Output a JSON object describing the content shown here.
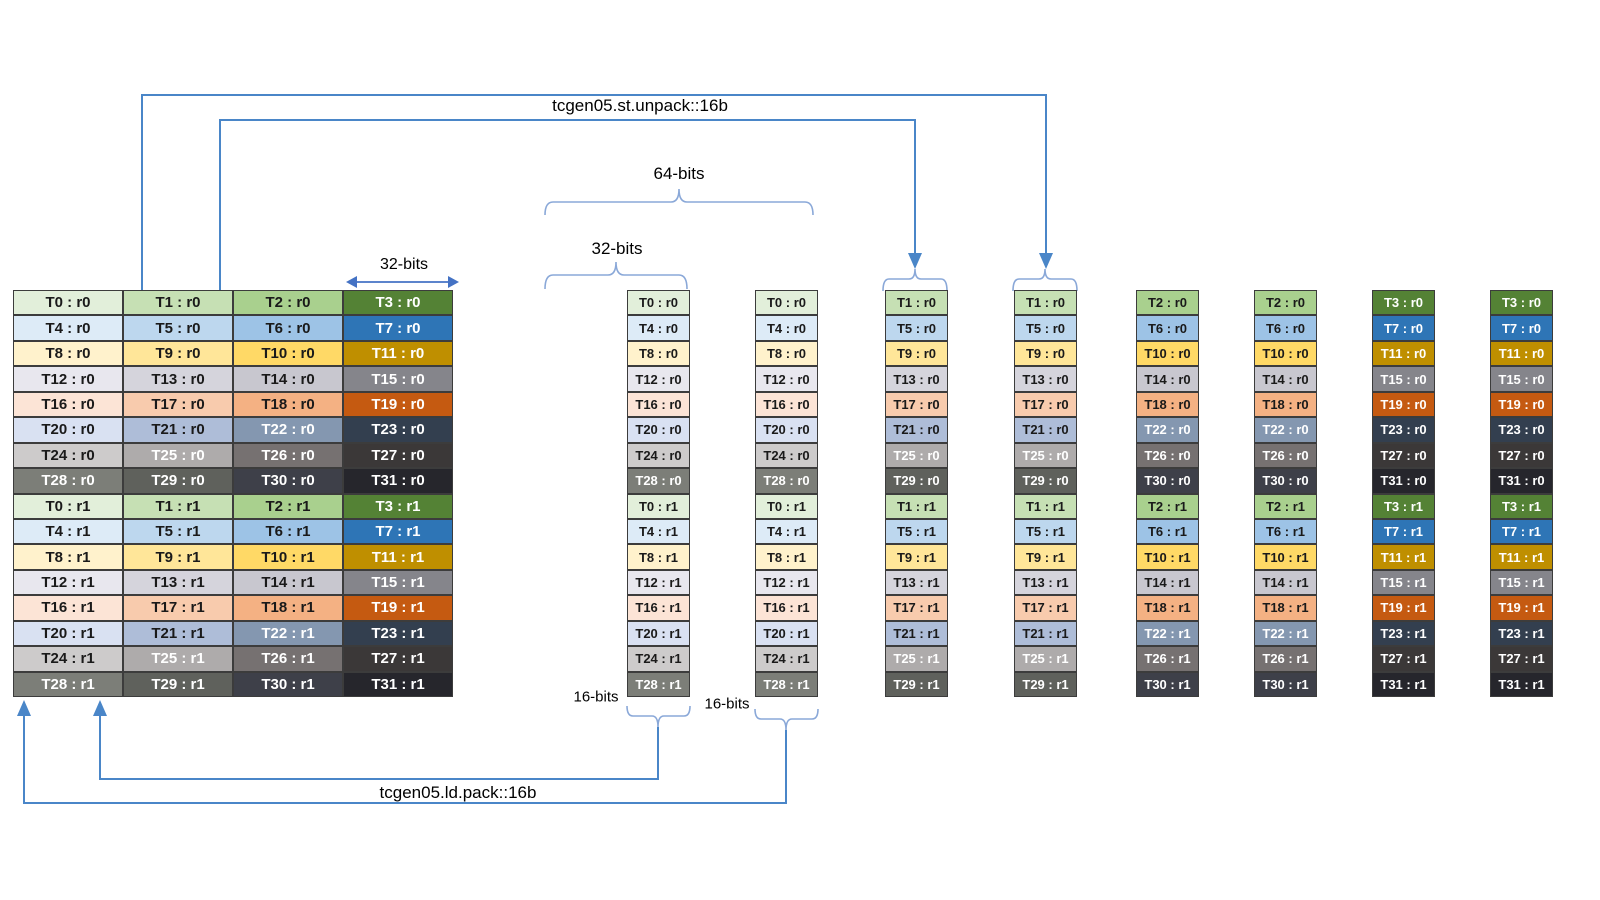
{
  "diagram": {
    "labels": {
      "st_unpack": "tcgen05.st.unpack::16b",
      "ld_pack": "tcgen05.ld.pack::16b",
      "bits_64": "64-bits",
      "bits_32_register": "32-bits",
      "bits_32_width": "32-bits",
      "bits_16_a": "16-bits",
      "bits_16_b": "16-bits"
    },
    "colors": {
      "connector": "#4a86c8",
      "brace": "#8aa8d8",
      "span_arrow": "#4472c4",
      "cell_border": "#3c3c3c",
      "text_dark": "#1a1a1a",
      "text_light": "#ffffff"
    },
    "palette": [
      {
        "name": "green",
        "shades": [
          "#e2efda",
          "#c6e0b4",
          "#a9d08e",
          "#548235"
        ],
        "light_text": [
          false,
          false,
          false,
          true
        ]
      },
      {
        "name": "blue",
        "shades": [
          "#ddebf7",
          "#bdd7ee",
          "#9dc3e6",
          "#2e75b6"
        ],
        "light_text": [
          false,
          false,
          false,
          true
        ]
      },
      {
        "name": "yellow",
        "shades": [
          "#fff2cc",
          "#ffe699",
          "#ffd966",
          "#bf8f00"
        ],
        "light_text": [
          false,
          false,
          false,
          true
        ]
      },
      {
        "name": "lavender-gray",
        "shades": [
          "#e8e7ee",
          "#d5d4dc",
          "#c8c7cf",
          "#85858b"
        ],
        "light_text": [
          false,
          false,
          false,
          true
        ]
      },
      {
        "name": "orange",
        "shades": [
          "#fce4d6",
          "#f8cbad",
          "#f4b183",
          "#c55a11"
        ],
        "light_text": [
          false,
          false,
          false,
          true
        ]
      },
      {
        "name": "blue-gray",
        "shades": [
          "#d9e1f2",
          "#aebdd8",
          "#8497b0",
          "#333f4f"
        ],
        "light_text": [
          false,
          false,
          true,
          true
        ]
      },
      {
        "name": "warm-gray",
        "shades": [
          "#cdcbcb",
          "#aeabab",
          "#767171",
          "#3b3838"
        ],
        "light_text": [
          false,
          true,
          true,
          true
        ]
      },
      {
        "name": "dark-gray",
        "shades": [
          "#7c7e78",
          "#5f615c",
          "#3e4049",
          "#26262c"
        ],
        "light_text": [
          true,
          true,
          true,
          true
        ]
      }
    ],
    "main_table": {
      "rows": [
        [
          "T0 : r0",
          "T1 : r0",
          "T2 : r0",
          "T3 : r0"
        ],
        [
          "T4 : r0",
          "T5 : r0",
          "T6 : r0",
          "T7 : r0"
        ],
        [
          "T8 : r0",
          "T9 : r0",
          "T10 : r0",
          "T11 : r0"
        ],
        [
          "T12 : r0",
          "T13 : r0",
          "T14 : r0",
          "T15 : r0"
        ],
        [
          "T16 : r0",
          "T17 : r0",
          "T18 : r0",
          "T19 : r0"
        ],
        [
          "T20 : r0",
          "T21 : r0",
          "T22 : r0",
          "T23 : r0"
        ],
        [
          "T24 : r0",
          "T25 : r0",
          "T26 : r0",
          "T27 : r0"
        ],
        [
          "T28 : r0",
          "T29 : r0",
          "T30 : r0",
          "T31 : r0"
        ],
        [
          "T0 : r1",
          "T1 : r1",
          "T2 : r1",
          "T3 : r1"
        ],
        [
          "T4 : r1",
          "T5 : r1",
          "T6 : r1",
          "T7 : r1"
        ],
        [
          "T8 : r1",
          "T9 : r1",
          "T10 : r1",
          "T11 : r1"
        ],
        [
          "T12 : r1",
          "T13 : r1",
          "T14 : r1",
          "T15 : r1"
        ],
        [
          "T16 : r1",
          "T17 : r1",
          "T18 : r1",
          "T19 : r1"
        ],
        [
          "T20 : r1",
          "T21 : r1",
          "T22 : r1",
          "T23 : r1"
        ],
        [
          "T24 : r1",
          "T25 : r1",
          "T26 : r1",
          "T27 : r1"
        ],
        [
          "T28 : r1",
          "T29 : r1",
          "T30 : r1",
          "T31 : r1"
        ]
      ]
    },
    "register_columns": [
      {
        "shade": 0,
        "cells": [
          "T0 : r0",
          "T4 : r0",
          "T8 : r0",
          "T12 : r0",
          "T16 : r0",
          "T20 : r0",
          "T24 : r0",
          "T28 : r0",
          "T0 : r1",
          "T4 : r1",
          "T8 : r1",
          "T12 : r1",
          "T16 : r1",
          "T20 : r1",
          "T24 : r1",
          "T28 : r1"
        ]
      },
      {
        "shade": 0,
        "cells": [
          "T0 : r0",
          "T4 : r0",
          "T8 : r0",
          "T12 : r0",
          "T16 : r0",
          "T20 : r0",
          "T24 : r0",
          "T28 : r0",
          "T0 : r1",
          "T4 : r1",
          "T8 : r1",
          "T12 : r1",
          "T16 : r1",
          "T20 : r1",
          "T24 : r1",
          "T28 : r1"
        ]
      },
      {
        "shade": 1,
        "cells": [
          "T1 : r0",
          "T5 : r0",
          "T9 : r0",
          "T13 : r0",
          "T17 : r0",
          "T21 : r0",
          "T25 : r0",
          "T29 : r0",
          "T1 : r1",
          "T5 : r1",
          "T9 : r1",
          "T13 : r1",
          "T17 : r1",
          "T21 : r1",
          "T25 : r1",
          "T29 : r1"
        ]
      },
      {
        "shade": 1,
        "cells": [
          "T1 : r0",
          "T5 : r0",
          "T9 : r0",
          "T13 : r0",
          "T17 : r0",
          "T21 : r0",
          "T25 : r0",
          "T29 : r0",
          "T1 : r1",
          "T5 : r1",
          "T9 : r1",
          "T13 : r1",
          "T17 : r1",
          "T21 : r1",
          "T25 : r1",
          "T29 : r1"
        ]
      },
      {
        "shade": 2,
        "cells": [
          "T2 : r0",
          "T6 : r0",
          "T10 : r0",
          "T14 : r0",
          "T18 : r0",
          "T22 : r0",
          "T26 : r0",
          "T30 : r0",
          "T2 : r1",
          "T6 : r1",
          "T10 : r1",
          "T14 : r1",
          "T18 : r1",
          "T22 : r1",
          "T26 : r1",
          "T30 : r1"
        ]
      },
      {
        "shade": 2,
        "cells": [
          "T2 : r0",
          "T6 : r0",
          "T10 : r0",
          "T14 : r0",
          "T18 : r0",
          "T22 : r0",
          "T26 : r0",
          "T30 : r0",
          "T2 : r1",
          "T6 : r1",
          "T10 : r1",
          "T14 : r1",
          "T18 : r1",
          "T22 : r1",
          "T26 : r1",
          "T30 : r1"
        ]
      },
      {
        "shade": 3,
        "cells": [
          "T3 : r0",
          "T7 : r0",
          "T11 : r0",
          "T15 : r0",
          "T19 : r0",
          "T23 : r0",
          "T27 : r0",
          "T31 : r0",
          "T3 : r1",
          "T7 : r1",
          "T11 : r1",
          "T15 : r1",
          "T19 : r1",
          "T23 : r1",
          "T27 : r1",
          "T31 : r1"
        ]
      },
      {
        "shade": 3,
        "cells": [
          "T3 : r0",
          "T7 : r0",
          "T11 : r0",
          "T15 : r0",
          "T19 : r0",
          "T23 : r0",
          "T27 : r0",
          "T31 : r0",
          "T3 : r1",
          "T7 : r1",
          "T11 : r1",
          "T15 : r1",
          "T19 : r1",
          "T23 : r1",
          "T27 : r1",
          "T31 : r1"
        ]
      }
    ]
  }
}
